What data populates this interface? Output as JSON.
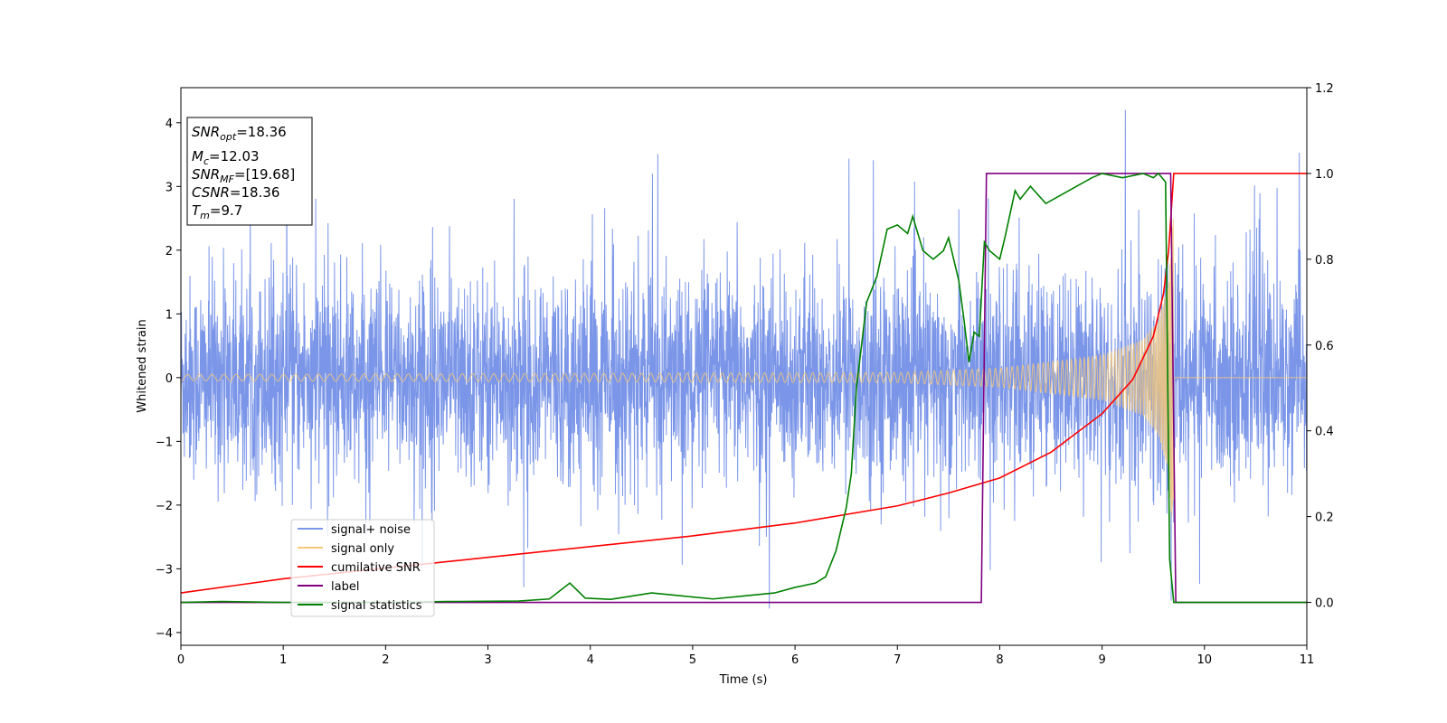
{
  "chart_data": {
    "type": "line",
    "xlabel": "Time (s)",
    "ylabel": "Whitened strain",
    "x_range": [
      0,
      11
    ],
    "xlim": [
      0,
      11
    ],
    "ylim_left": [
      -4.2,
      4.55
    ],
    "ylim_right": [
      -0.1,
      1.2
    ],
    "x_ticks": [
      "0",
      "1",
      "2",
      "3",
      "4",
      "5",
      "6",
      "7",
      "8",
      "9",
      "10",
      "11"
    ],
    "y_ticks_left": [
      "−4",
      "−3",
      "−2",
      "−1",
      "0",
      "1",
      "2",
      "3",
      "4"
    ],
    "y_ticks_right": [
      "0.0",
      "0.2",
      "0.4",
      "0.6",
      "0.8",
      "1.0",
      "1.2"
    ],
    "grid": false,
    "legend_position": "lower-left",
    "annotation": {
      "snr_opt": {
        "name": "SNR",
        "sub": "opt",
        "value": "=18.36"
      },
      "mc": {
        "name": "M",
        "sub": "c",
        "value": "=12.03"
      },
      "snr_mf": {
        "name": "SNR",
        "sub": "MF",
        "value": "=[19.68]"
      },
      "csnr": {
        "name": "CSNR",
        "sub": "",
        "value": "=18.36"
      },
      "tm": {
        "name": "T",
        "sub": "m",
        "value": "=9.7"
      }
    },
    "series": [
      {
        "name": "signal+ noise",
        "axis": "left",
        "color": "#7b96e8",
        "description": "Gaussian whitened noise with injected chirp; envelope about ±2.3, spikes up to about 4.2"
      },
      {
        "name": "signal only",
        "axis": "left",
        "color": "#f5c87a",
        "amplitude_points": [
          [
            0,
            0.05
          ],
          [
            7,
            0.08
          ],
          [
            8,
            0.15
          ],
          [
            9,
            0.35
          ],
          [
            9.4,
            0.6
          ],
          [
            9.55,
            0.9
          ],
          [
            9.65,
            1.5
          ],
          [
            9.7,
            2.7
          ]
        ],
        "merger_time": 9.7
      },
      {
        "name": "cumilative SNR",
        "axis": "right",
        "color": "#ff0000",
        "points": [
          [
            0,
            0.022
          ],
          [
            1,
            0.055
          ],
          [
            2,
            0.08
          ],
          [
            3,
            0.105
          ],
          [
            4,
            0.13
          ],
          [
            5,
            0.155
          ],
          [
            6,
            0.185
          ],
          [
            7,
            0.225
          ],
          [
            7.5,
            0.255
          ],
          [
            8,
            0.29
          ],
          [
            8.5,
            0.35
          ],
          [
            9,
            0.44
          ],
          [
            9.3,
            0.52
          ],
          [
            9.5,
            0.62
          ],
          [
            9.6,
            0.72
          ],
          [
            9.65,
            0.82
          ],
          [
            9.7,
            1.0
          ],
          [
            11,
            1.0
          ]
        ]
      },
      {
        "name": "label",
        "axis": "right",
        "color": "#800080",
        "points": [
          [
            0,
            0
          ],
          [
            7.82,
            0
          ],
          [
            7.87,
            1.0
          ],
          [
            9.67,
            1.0
          ],
          [
            9.72,
            0.0
          ],
          [
            11,
            0
          ]
        ]
      },
      {
        "name": "signal statistics",
        "axis": "right",
        "color": "#008000",
        "points": [
          [
            0,
            0
          ],
          [
            0.4,
            0.002
          ],
          [
            1,
            0
          ],
          [
            2,
            0
          ],
          [
            2.6,
            0.002
          ],
          [
            3.3,
            0.003
          ],
          [
            3.6,
            0.008
          ],
          [
            3.8,
            0.045
          ],
          [
            3.95,
            0.01
          ],
          [
            4.2,
            0.007
          ],
          [
            4.6,
            0.022
          ],
          [
            4.9,
            0.015
          ],
          [
            5.2,
            0.008
          ],
          [
            5.5,
            0.015
          ],
          [
            5.8,
            0.022
          ],
          [
            6.0,
            0.035
          ],
          [
            6.2,
            0.045
          ],
          [
            6.3,
            0.06
          ],
          [
            6.4,
            0.12
          ],
          [
            6.5,
            0.22
          ],
          [
            6.55,
            0.3
          ],
          [
            6.6,
            0.5
          ],
          [
            6.65,
            0.6
          ],
          [
            6.7,
            0.7
          ],
          [
            6.8,
            0.76
          ],
          [
            6.9,
            0.87
          ],
          [
            7.0,
            0.88
          ],
          [
            7.1,
            0.86
          ],
          [
            7.15,
            0.9
          ],
          [
            7.25,
            0.82
          ],
          [
            7.35,
            0.8
          ],
          [
            7.45,
            0.82
          ],
          [
            7.5,
            0.85
          ],
          [
            7.6,
            0.75
          ],
          [
            7.65,
            0.66
          ],
          [
            7.7,
            0.56
          ],
          [
            7.75,
            0.63
          ],
          [
            7.8,
            0.62
          ],
          [
            7.85,
            0.84
          ],
          [
            7.9,
            0.82
          ],
          [
            8.0,
            0.8
          ],
          [
            8.05,
            0.85
          ],
          [
            8.15,
            0.96
          ],
          [
            8.2,
            0.94
          ],
          [
            8.3,
            0.97
          ],
          [
            8.45,
            0.93
          ],
          [
            8.6,
            0.95
          ],
          [
            8.75,
            0.97
          ],
          [
            8.9,
            0.99
          ],
          [
            9.0,
            1.0
          ],
          [
            9.2,
            0.99
          ],
          [
            9.4,
            1.0
          ],
          [
            9.5,
            0.99
          ],
          [
            9.55,
            1.0
          ],
          [
            9.62,
            0.98
          ],
          [
            9.66,
            0.1
          ],
          [
            9.7,
            0.0
          ],
          [
            11,
            0
          ]
        ]
      }
    ]
  }
}
